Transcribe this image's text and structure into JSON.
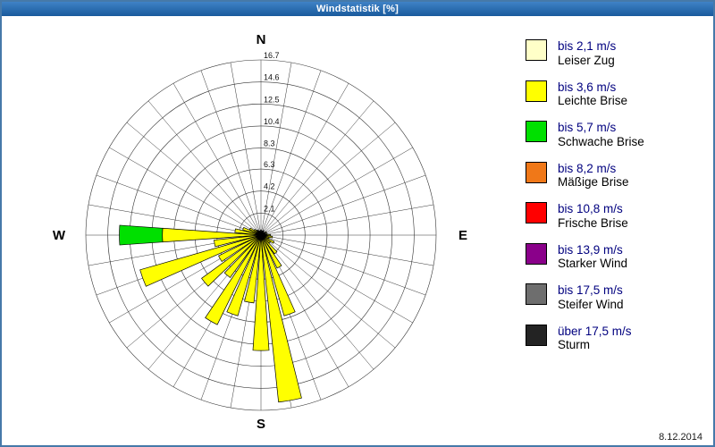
{
  "window": {
    "title": "Windstatistik [%]"
  },
  "footer": {
    "date": "8.12.2014"
  },
  "legend": {
    "items": [
      {
        "key": "leiser_zug",
        "speed": "bis 2,1 m/s",
        "name": "Leiser Zug",
        "color": "#FFFFC8"
      },
      {
        "key": "leichte_brise",
        "speed": "bis 3,6 m/s",
        "name": "Leichte Brise",
        "color": "#FFFF00"
      },
      {
        "key": "schwache_brise",
        "speed": "bis 5,7 m/s",
        "name": "Schwache Brise",
        "color": "#00E000"
      },
      {
        "key": "maessige_brise",
        "speed": "bis 8,2 m/s",
        "name": "Mäßige Brise",
        "color": "#F07818"
      },
      {
        "key": "frische_brise",
        "speed": "bis 10,8 m/s",
        "name": "Frische Brise",
        "color": "#FF0000"
      },
      {
        "key": "starker_wind",
        "speed": "bis 13,9 m/s",
        "name": "Starker Wind",
        "color": "#8A008A"
      },
      {
        "key": "steifer_wind",
        "speed": "bis 17,5 m/s",
        "name": "Steifer Wind",
        "color": "#6E6E6E"
      },
      {
        "key": "sturm",
        "speed": "über 17,5 m/s",
        "name": "Sturm",
        "color": "#232323"
      }
    ]
  },
  "chart_data": {
    "type": "wind_rose",
    "title": "Windstatistik [%]",
    "units": "%",
    "max": 16.7,
    "rings": [
      2.1,
      4.2,
      6.3,
      8.3,
      10.4,
      12.5,
      14.6,
      16.7
    ],
    "ring_labels": [
      "2.1",
      "4.2",
      "6.3",
      "8.3",
      "10.4",
      "12.5",
      "14.6",
      "16.7"
    ],
    "sector_degrees": 10,
    "compass": [
      "N",
      "E",
      "S",
      "W"
    ],
    "petals": [
      {
        "dir": 0,
        "segments": [
          {
            "class": "leichte_brise",
            "value": 0.5
          }
        ]
      },
      {
        "dir": 10,
        "segments": [
          {
            "class": "leichte_brise",
            "value": 0.3
          }
        ]
      },
      {
        "dir": 20,
        "segments": [
          {
            "class": "leichte_brise",
            "value": 0.4
          }
        ]
      },
      {
        "dir": 30,
        "segments": [
          {
            "class": "leichte_brise",
            "value": 0.5
          }
        ]
      },
      {
        "dir": 40,
        "segments": [
          {
            "class": "leichte_brise",
            "value": 0.3
          }
        ]
      },
      {
        "dir": 50,
        "segments": [
          {
            "class": "leichte_brise",
            "value": 0.4
          }
        ]
      },
      {
        "dir": 60,
        "segments": [
          {
            "class": "leichte_brise",
            "value": 0.6
          }
        ]
      },
      {
        "dir": 70,
        "segments": [
          {
            "class": "leichte_brise",
            "value": 0.4
          }
        ]
      },
      {
        "dir": 80,
        "segments": [
          {
            "class": "leichte_brise",
            "value": 0.6
          }
        ]
      },
      {
        "dir": 90,
        "segments": [
          {
            "class": "leichte_brise",
            "value": 0.9
          }
        ]
      },
      {
        "dir": 100,
        "segments": [
          {
            "class": "leichte_brise",
            "value": 1.1
          }
        ]
      },
      {
        "dir": 110,
        "segments": [
          {
            "class": "leichte_brise",
            "value": 0.8
          }
        ]
      },
      {
        "dir": 120,
        "segments": [
          {
            "class": "leichte_brise",
            "value": 1.4
          }
        ]
      },
      {
        "dir": 130,
        "segments": [
          {
            "class": "leichte_brise",
            "value": 1.1
          }
        ]
      },
      {
        "dir": 140,
        "segments": [
          {
            "class": "leichte_brise",
            "value": 2.2
          }
        ]
      },
      {
        "dir": 150,
        "segments": [
          {
            "class": "leichte_brise",
            "value": 3.5
          }
        ]
      },
      {
        "dir": 160,
        "segments": [
          {
            "class": "leichte_brise",
            "value": 8.0
          }
        ]
      },
      {
        "dir": 170,
        "segments": [
          {
            "class": "leichte_brise",
            "value": 16.0
          }
        ]
      },
      {
        "dir": 180,
        "segments": [
          {
            "class": "leichte_brise",
            "value": 11.0
          }
        ]
      },
      {
        "dir": 190,
        "segments": [
          {
            "class": "leichte_brise",
            "value": 6.5
          }
        ]
      },
      {
        "dir": 200,
        "segments": [
          {
            "class": "leichte_brise",
            "value": 8.0
          }
        ]
      },
      {
        "dir": 210,
        "segments": [
          {
            "class": "leichte_brise",
            "value": 9.5
          }
        ]
      },
      {
        "dir": 220,
        "segments": [
          {
            "class": "leichte_brise",
            "value": 5.0
          }
        ]
      },
      {
        "dir": 230,
        "segments": [
          {
            "class": "leichte_brise",
            "value": 7.0
          }
        ]
      },
      {
        "dir": 240,
        "segments": [
          {
            "class": "leichte_brise",
            "value": 4.5
          }
        ]
      },
      {
        "dir": 250,
        "segments": [
          {
            "class": "leichte_brise",
            "value": 12.0
          }
        ]
      },
      {
        "dir": 260,
        "segments": [
          {
            "class": "leichte_brise",
            "value": 4.5
          }
        ]
      },
      {
        "dir": 270,
        "segments": [
          {
            "class": "leichte_brise",
            "value": 9.4
          },
          {
            "class": "schwache_brise",
            "value": 4.1
          }
        ]
      },
      {
        "dir": 280,
        "segments": [
          {
            "class": "leichte_brise",
            "value": 2.5
          }
        ]
      },
      {
        "dir": 290,
        "segments": [
          {
            "class": "leichte_brise",
            "value": 1.8
          }
        ]
      },
      {
        "dir": 300,
        "segments": [
          {
            "class": "leichte_brise",
            "value": 1.2
          }
        ]
      },
      {
        "dir": 310,
        "segments": [
          {
            "class": "leichte_brise",
            "value": 0.8
          }
        ]
      },
      {
        "dir": 320,
        "segments": [
          {
            "class": "leichte_brise",
            "value": 0.6
          }
        ]
      },
      {
        "dir": 330,
        "segments": [
          {
            "class": "leichte_brise",
            "value": 0.5
          }
        ]
      },
      {
        "dir": 340,
        "segments": [
          {
            "class": "leichte_brise",
            "value": 0.4
          }
        ]
      },
      {
        "dir": 350,
        "segments": [
          {
            "class": "leichte_brise",
            "value": 0.3
          }
        ]
      }
    ]
  }
}
